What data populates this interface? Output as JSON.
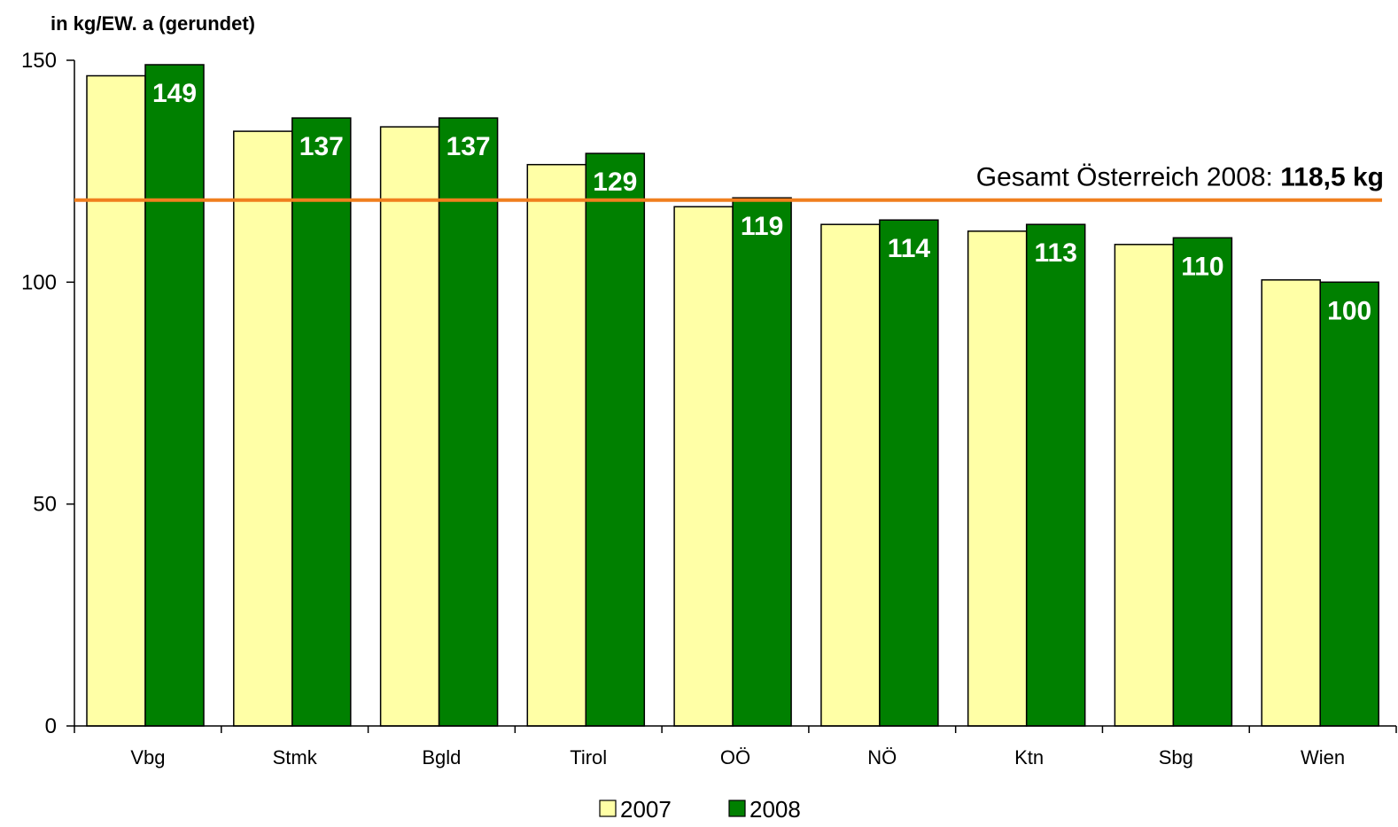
{
  "chart_data": {
    "type": "bar",
    "unit_label": "in kg/EW. a (gerundet)",
    "categories": [
      "Vbg",
      "Stmk",
      "Bgld",
      "Tirol",
      "OÖ",
      "NÖ",
      "Ktn",
      "Sbg",
      "Wien"
    ],
    "series": [
      {
        "name": "2007",
        "color": "#ffffa6",
        "values": [
          146.5,
          134,
          135,
          126.5,
          117,
          113,
          111.5,
          108.5,
          100.5
        ],
        "show_labels": false
      },
      {
        "name": "2008",
        "color": "#008000",
        "values": [
          149,
          137,
          137,
          129,
          119,
          114,
          113,
          110,
          100
        ],
        "show_labels": true
      }
    ],
    "ylim": [
      0,
      150
    ],
    "yticks": [
      0,
      50,
      100,
      150
    ],
    "grid": false,
    "legend_position": "bottom-center",
    "reference_line": {
      "value": 118.5,
      "color": "#f07f1e",
      "label_prefix": "Gesamt Österreich 2008: ",
      "label_value": "118,5 kg"
    }
  }
}
